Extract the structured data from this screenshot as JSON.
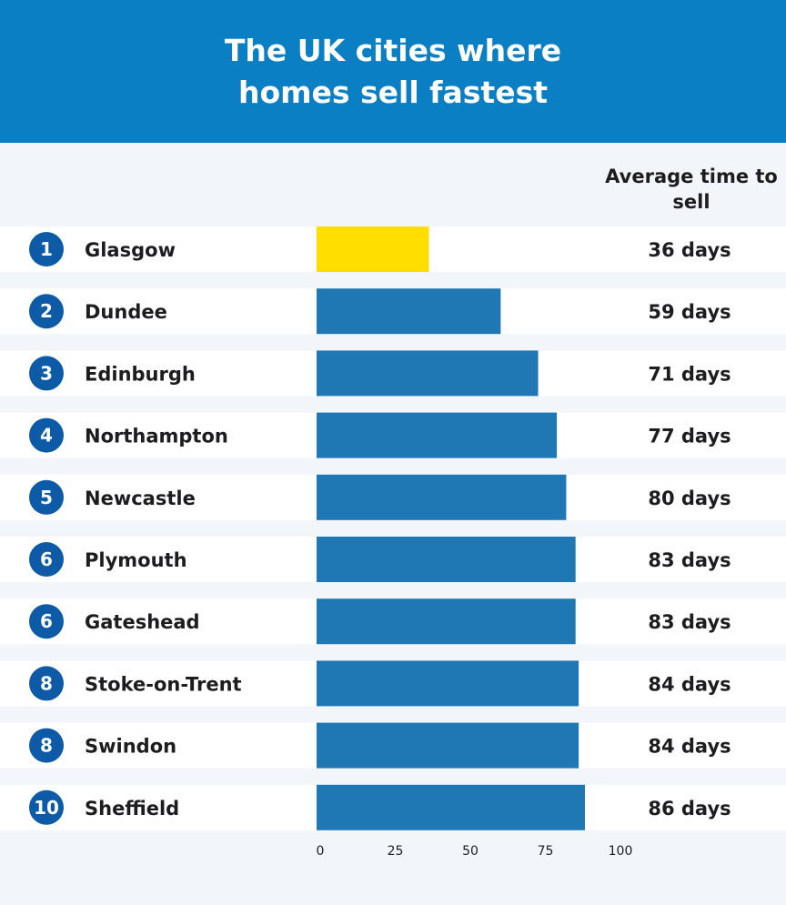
{
  "header": {
    "title": "The UK cities where homes sell fastest"
  },
  "column_header": "Average time to sell",
  "colors": {
    "header_bg": "#0a7fc4",
    "page_bg": "#f2f6fb",
    "row_bg": "#ffffff",
    "bar": "#1f77b4",
    "highlight_bar": "#ffde00",
    "badge": "#0d5aa7"
  },
  "chart_data": {
    "type": "bar",
    "orientation": "horizontal",
    "title": "The UK cities where homes sell fastest",
    "ylabel": "Average time to sell",
    "xlim": [
      0,
      100
    ],
    "x_ticks": [
      0,
      25,
      50,
      75,
      100
    ],
    "grid": false,
    "highlighted_category": "Glasgow",
    "ranks": [
      "1",
      "2",
      "3",
      "4",
      "5",
      "6",
      "6",
      "8",
      "8",
      "10"
    ],
    "categories": [
      "Glasgow",
      "Dundee",
      "Edinburgh",
      "Northampton",
      "Newcastle",
      "Plymouth",
      "Gateshead",
      "Stoke-on-Trent",
      "Swindon",
      "Sheffield"
    ],
    "values": [
      36,
      59,
      71,
      77,
      80,
      83,
      83,
      84,
      84,
      86
    ],
    "value_labels": [
      "36 days",
      "59 days",
      "71 days",
      "77 days",
      "80 days",
      "83 days",
      "83 days",
      "84 days",
      "84 days",
      "86 days"
    ]
  }
}
